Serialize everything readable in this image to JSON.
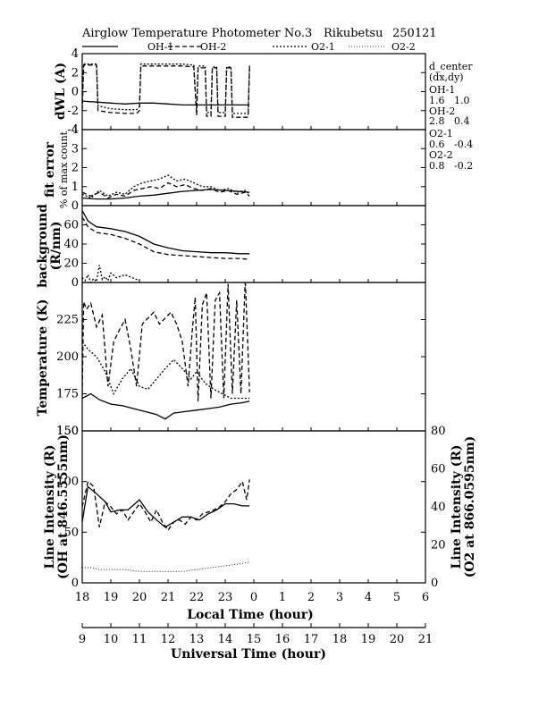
{
  "header": {
    "title": "Airglow Temperature Photometer No.3",
    "site": "Rikubetsu",
    "date": "250121",
    "legend": [
      {
        "name": "OH-1",
        "dash": "solid"
      },
      {
        "name": "OH-2",
        "dash": "dash"
      },
      {
        "name": "O2-1",
        "dash": "dot"
      },
      {
        "name": "O2-2",
        "dash": "finedot"
      }
    ]
  },
  "side_info": {
    "title": "d_center",
    "subtitle": "(dx,dy)",
    "entries": [
      {
        "name": "OH-1",
        "value": "1.6   1.0"
      },
      {
        "name": "OH-2",
        "value": "2.8   0.4"
      },
      {
        "name": "O2-1",
        "value": "0.6   -0.4"
      },
      {
        "name": "O2-2",
        "value": "0.8   -0.2"
      }
    ]
  },
  "axes": {
    "local_time": {
      "label": "Local Time (hour)",
      "ticks": [
        "18",
        "19",
        "20",
        "21",
        "22",
        "23",
        "0",
        "1",
        "2",
        "3",
        "4",
        "5",
        "6"
      ]
    },
    "universal_time": {
      "label": "Universal Time (hour)",
      "ticks": [
        "9",
        "10",
        "11",
        "12",
        "13",
        "14",
        "15",
        "16",
        "17",
        "18",
        "19",
        "20",
        "21"
      ]
    }
  },
  "chart_data": [
    {
      "type": "line",
      "panel": "dwl",
      "ylabel": "dWL (A)",
      "ylim": [
        -4,
        4
      ],
      "yticks": [
        "4",
        "2",
        "0",
        "-2",
        "-4"
      ],
      "x_unit": "UT hour",
      "series": [
        {
          "name": "OH-1",
          "x": [
            9.0,
            9.5,
            10.0,
            10.5,
            11.0,
            11.5,
            12.0,
            12.5,
            13.0,
            13.5,
            14.0,
            14.5,
            14.85
          ],
          "y": [
            -1.0,
            -1.1,
            -1.2,
            -1.3,
            -1.2,
            -1.2,
            -1.3,
            -1.4,
            -1.4,
            -1.4,
            -1.4,
            -1.4,
            -1.4
          ]
        },
        {
          "name": "OH-2",
          "x": [
            9.0,
            9.05,
            9.15,
            9.5,
            9.55,
            10.0,
            10.5,
            10.9,
            11.0,
            11.05,
            12.0,
            12.5,
            12.9,
            13.0,
            13.05,
            13.3,
            13.35,
            13.5,
            13.55,
            13.7,
            13.75,
            14.0,
            14.05,
            14.2,
            14.25,
            14.8,
            14.85
          ],
          "y": [
            -2.0,
            2.8,
            2.8,
            2.8,
            -2.0,
            -2.2,
            -2.3,
            -2.3,
            -2.0,
            2.7,
            2.7,
            2.7,
            2.6,
            -2.5,
            2.5,
            2.5,
            -2.6,
            -2.6,
            2.5,
            2.5,
            -2.6,
            -2.6,
            2.5,
            2.5,
            -2.7,
            -2.7,
            2.6
          ]
        },
        {
          "name": "O2-1",
          "x": [
            9.0,
            9.05,
            9.15,
            9.5,
            9.55,
            10.0,
            10.5,
            10.9,
            11.0,
            11.05,
            12.0,
            12.5,
            12.9,
            13.0,
            13.05,
            13.3,
            13.35,
            13.5,
            13.55,
            13.7,
            13.75,
            14.0,
            14.05,
            14.2,
            14.25,
            14.8,
            14.85
          ],
          "y": [
            -1.6,
            2.9,
            2.9,
            2.9,
            -1.5,
            -1.8,
            -1.9,
            -1.9,
            -1.6,
            2.9,
            2.9,
            2.9,
            2.8,
            -2.1,
            2.7,
            2.7,
            -2.2,
            -2.2,
            2.6,
            2.6,
            -2.2,
            -2.2,
            2.6,
            2.6,
            -2.3,
            -2.3,
            2.8
          ]
        }
      ]
    },
    {
      "type": "line",
      "panel": "fit_error",
      "ylabel": "fit error",
      "ylabel2": "% of max count",
      "ylim": [
        0,
        4
      ],
      "yticks": [
        "4",
        "3",
        "2",
        "1",
        "0"
      ],
      "series": [
        {
          "name": "OH-1",
          "x": [
            9.0,
            9.5,
            10.0,
            10.5,
            11.0,
            11.5,
            12.0,
            12.5,
            13.0,
            13.5,
            14.0,
            14.5,
            14.85
          ],
          "y": [
            0.4,
            0.35,
            0.35,
            0.4,
            0.5,
            0.55,
            0.65,
            0.75,
            0.8,
            0.85,
            0.8,
            0.75,
            0.7
          ]
        },
        {
          "name": "OH-2",
          "x": [
            9.0,
            9.3,
            9.6,
            9.9,
            10.2,
            10.5,
            10.8,
            11.1,
            11.4,
            11.7,
            12.0,
            12.3,
            12.6,
            12.9,
            13.2,
            13.5,
            13.8,
            14.1,
            14.4,
            14.7,
            14.85
          ],
          "y": [
            0.7,
            0.5,
            0.7,
            0.4,
            0.6,
            0.5,
            0.8,
            0.9,
            1.0,
            0.9,
            1.2,
            1.0,
            1.1,
            0.9,
            0.8,
            0.9,
            0.7,
            0.8,
            0.6,
            0.7,
            0.5
          ]
        },
        {
          "name": "O2-1",
          "x": [
            9.0,
            9.3,
            9.6,
            9.9,
            10.2,
            10.5,
            10.8,
            11.1,
            11.4,
            11.7,
            12.0,
            12.3,
            12.6,
            12.9,
            13.2,
            13.5,
            13.8,
            14.1,
            14.4,
            14.7,
            14.85
          ],
          "y": [
            0.6,
            0.4,
            0.8,
            0.5,
            0.7,
            0.6,
            1.0,
            1.2,
            1.3,
            1.4,
            1.6,
            1.3,
            1.4,
            1.2,
            1.0,
            1.0,
            0.8,
            0.9,
            0.7,
            0.8,
            0.6
          ]
        }
      ]
    },
    {
      "type": "line",
      "panel": "background",
      "ylabel": "background",
      "ylabel2": "(R/nm)",
      "ylim": [
        0,
        80
      ],
      "yticks": [
        "60",
        "40",
        "20",
        "0"
      ],
      "series": [
        {
          "name": "OH-1",
          "x": [
            9.0,
            9.2,
            9.5,
            10.0,
            10.5,
            11.0,
            11.5,
            12.0,
            12.5,
            13.0,
            13.5,
            14.0,
            14.5,
            14.85
          ],
          "y": [
            75,
            64,
            58,
            56,
            53,
            48,
            40,
            36,
            33,
            32,
            31,
            31,
            30,
            30
          ]
        },
        {
          "name": "OH-2",
          "x": [
            9.0,
            9.2,
            9.5,
            10.0,
            10.5,
            11.0,
            11.5,
            12.0,
            12.5,
            13.0,
            13.5,
            14.0,
            14.5,
            14.85
          ],
          "y": [
            68,
            58,
            52,
            50,
            46,
            40,
            32,
            29,
            28,
            27,
            26,
            25,
            25,
            24
          ]
        },
        {
          "name": "O2-1",
          "x": [
            9.0,
            9.1,
            9.2,
            9.3,
            9.4,
            9.5,
            9.6,
            9.7,
            9.8,
            9.9,
            10.0,
            10.2,
            10.5,
            11.0
          ],
          "y": [
            5,
            2,
            8,
            0,
            4,
            1,
            18,
            3,
            6,
            2,
            10,
            5,
            8,
            2
          ]
        }
      ]
    },
    {
      "type": "line",
      "panel": "temperature",
      "ylabel": "Temperature (K)",
      "ylim": [
        150,
        250
      ],
      "yticks": [
        "225",
        "200",
        "175",
        "150"
      ],
      "series": [
        {
          "name": "OH-1",
          "x": [
            9.0,
            9.3,
            9.6,
            10.0,
            10.4,
            10.8,
            11.2,
            11.6,
            11.9,
            12.2,
            12.6,
            13.0,
            13.4,
            13.8,
            14.2,
            14.6,
            14.85
          ],
          "y": [
            172,
            175,
            171,
            168,
            167,
            165,
            163,
            161,
            158,
            162,
            163,
            164,
            165,
            166,
            168,
            169,
            170
          ]
        },
        {
          "name": "OH-2",
          "x": [
            9.0,
            9.05,
            9.15,
            9.3,
            9.5,
            9.7,
            9.9,
            10.1,
            10.3,
            10.5,
            10.7,
            10.9,
            11.1,
            11.3,
            11.5,
            11.7,
            11.9,
            12.1,
            12.3,
            12.5,
            12.7,
            12.85,
            12.95,
            13.05,
            13.2,
            13.35,
            13.5,
            13.65,
            13.8,
            13.95,
            14.1,
            14.25,
            14.4,
            14.55,
            14.7,
            14.85
          ],
          "y": [
            175,
            237,
            232,
            236,
            220,
            228,
            180,
            210,
            218,
            225,
            205,
            180,
            222,
            226,
            230,
            222,
            226,
            230,
            222,
            210,
            180,
            218,
            240,
            170,
            235,
            243,
            172,
            238,
            243,
            172,
            249,
            175,
            238,
            175,
            252,
            176
          ]
        },
        {
          "name": "O2-1",
          "x": [
            9.0,
            9.2,
            9.5,
            9.8,
            10.1,
            10.4,
            10.7,
            11.0,
            11.3,
            11.6,
            11.9,
            12.2,
            12.5,
            12.8,
            13.0,
            13.3,
            13.6,
            13.9,
            14.2,
            14.5,
            14.85
          ],
          "y": [
            210,
            205,
            200,
            190,
            175,
            185,
            192,
            180,
            178,
            185,
            192,
            198,
            192,
            185,
            190,
            182,
            178,
            175,
            172,
            172,
            172
          ]
        }
      ]
    },
    {
      "type": "line",
      "panel": "line_intensity",
      "ylabel": "Line Intensity (R)",
      "ylabel2": "(OH at 846.5555nm)",
      "ylabel_right": "Line Intensity (R)",
      "ylabel_right2": "(O2 at 866.0595nm)",
      "ylim": [
        0,
        150
      ],
      "yticks": [
        "150",
        "100",
        "50",
        "0"
      ],
      "ylim_right": [
        0,
        80
      ],
      "yticks_right": [
        "80",
        "60",
        "40",
        "20",
        "0"
      ],
      "series": [
        {
          "name": "OH-1",
          "axis": "left",
          "x": [
            9.0,
            9.2,
            9.5,
            9.8,
            10.0,
            10.3,
            10.6,
            11.0,
            11.3,
            11.6,
            11.9,
            12.2,
            12.5,
            12.8,
            13.1,
            13.4,
            13.7,
            14.0,
            14.3,
            14.6,
            14.85
          ],
          "y": [
            60,
            95,
            88,
            80,
            70,
            72,
            72,
            82,
            70,
            62,
            55,
            60,
            65,
            65,
            62,
            68,
            72,
            78,
            78,
            76,
            76
          ]
        },
        {
          "name": "OH-2",
          "axis": "left",
          "x": [
            9.0,
            9.2,
            9.4,
            9.6,
            9.8,
            10.0,
            10.2,
            10.4,
            10.6,
            10.8,
            11.0,
            11.2,
            11.4,
            11.6,
            11.8,
            12.0,
            12.2,
            12.4,
            12.6,
            12.8,
            13.0,
            13.2,
            13.4,
            13.6,
            13.8,
            14.0,
            14.2,
            14.4,
            14.6,
            14.75,
            14.85
          ],
          "y": [
            75,
            100,
            95,
            55,
            80,
            75,
            68,
            72,
            62,
            70,
            78,
            70,
            60,
            72,
            60,
            52,
            60,
            62,
            58,
            65,
            62,
            68,
            70,
            72,
            75,
            80,
            88,
            92,
            100,
            82,
            102
          ]
        },
        {
          "name": "O2-1",
          "axis": "right",
          "x": [
            9.0,
            9.3,
            9.6,
            10.0,
            10.5,
            11.0,
            11.5,
            12.0,
            12.5,
            13.0,
            13.5,
            14.0,
            14.5,
            14.85
          ],
          "y": [
            8,
            8,
            7,
            7,
            7,
            6,
            6,
            6,
            6,
            7,
            8,
            9,
            10,
            11
          ]
        }
      ]
    }
  ]
}
